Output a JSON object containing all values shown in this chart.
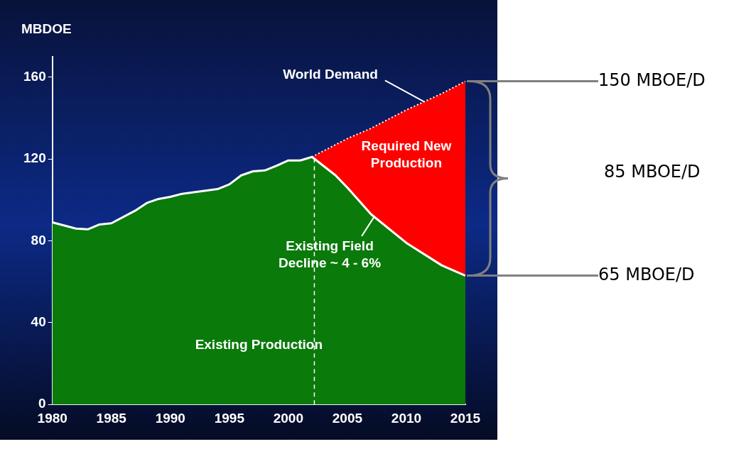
{
  "chart_data": {
    "type": "area",
    "ylabel": "MBDOE",
    "stacked": true,
    "x": [
      1980,
      1982,
      1983,
      1984,
      1985,
      1987,
      1988,
      1989,
      1990,
      1991,
      1992,
      1994,
      1995,
      1996,
      1997,
      1998,
      1999,
      2000,
      2001,
      2002,
      2004,
      2005,
      2007,
      2010,
      2013,
      2015
    ],
    "series": [
      {
        "color": "#0a7a0a",
        "values": [
          89,
          86,
          85.6,
          88,
          88.6,
          94.7,
          98.5,
          100.5,
          101.5,
          103,
          103.8,
          105.3,
          107.6,
          112,
          114,
          114.4,
          116.7,
          119.3,
          119.3,
          121,
          112,
          106,
          93,
          79,
          68,
          63
        ]
      },
      {
        "color": "#ff0000",
        "line_style": "dotted",
        "values": [
          null,
          null,
          null,
          null,
          null,
          null,
          null,
          null,
          null,
          null,
          null,
          null,
          null,
          null,
          null,
          null,
          null,
          null,
          null,
          0,
          15,
          24,
          42,
          65,
          84,
          95
        ]
      }
    ],
    "xlim": [
      1980,
      2015
    ],
    "xticks": [
      1980,
      1985,
      1990,
      1995,
      2000,
      2005,
      2010,
      2015
    ],
    "ylim": [
      0,
      170
    ],
    "yticks": [
      0,
      40,
      80,
      120,
      160
    ],
    "grid": false,
    "legend": false,
    "ref_lines": [
      {
        "axis": "x",
        "value": 2002.2,
        "line_style": "dashed",
        "color": "#ffffff"
      }
    ],
    "annotations": [
      {
        "text": "World Demand",
        "x": 2011.5,
        "y": 148
      },
      "Required New Production",
      {
        "text": "Existing Field Decline ~ 4 - 6%",
        "x": 2007.3,
        "y": 92
      },
      "Existing Production",
      {
        "text": "150 MBOE/D",
        "x": 2015,
        "y": 158
      },
      "85 MBOE/D",
      {
        "text": "65 MBOE/D",
        "x": 2015,
        "y": 63
      }
    ]
  }
}
